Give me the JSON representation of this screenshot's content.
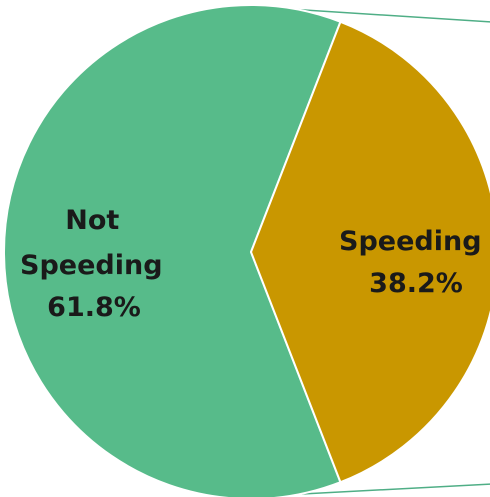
{
  "chart_data": {
    "type": "pie",
    "slices": [
      {
        "label_lines": [
          "Not",
          "Speeding",
          "61.8%"
        ],
        "category": "Not Speeding",
        "value": 61.8,
        "color": "#57bb8a"
      },
      {
        "label_lines": [
          "Speeding",
          "38.2%"
        ],
        "category": "Speeding",
        "value": 38.2,
        "color": "#c99700"
      }
    ],
    "slice_border_color": "#ffffff",
    "connector_color": "#4fae86"
  }
}
